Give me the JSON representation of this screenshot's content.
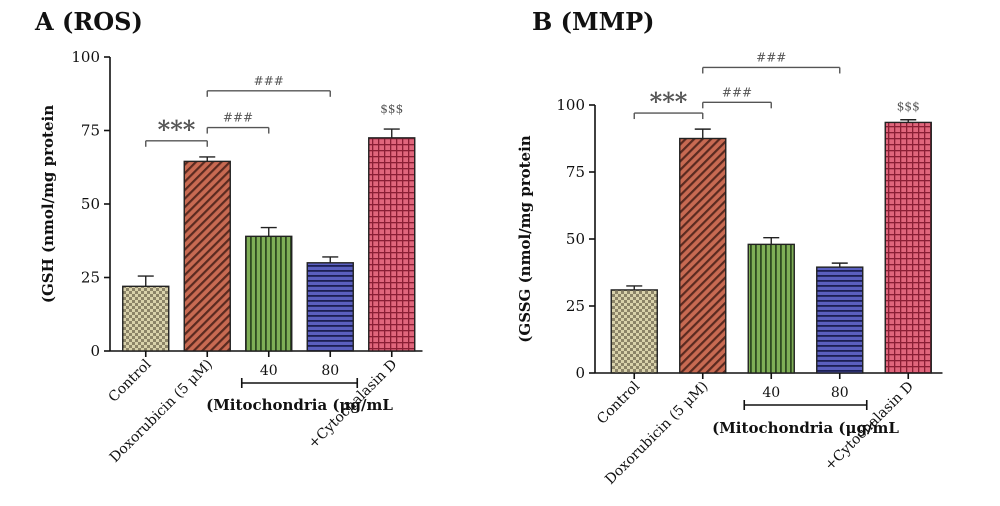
{
  "chart_data": [
    {
      "type": "bar",
      "title": "A (ROS)",
      "ylabel": "(GSH (nmol/mg protein",
      "ylim": [
        0,
        100
      ],
      "yticks": [
        0,
        25,
        50,
        75,
        100
      ],
      "categories": [
        "Control",
        "Doxorubicin (5 μM)",
        "40",
        "80",
        "+Cytochalasin D"
      ],
      "values": [
        22,
        64.5,
        39,
        30,
        72.5
      ],
      "errors": [
        3.5,
        1.5,
        3,
        2,
        3
      ],
      "group_label": "(Mitochondria (μg/mL",
      "group_members": [
        2,
        3
      ],
      "patterns": [
        "checker",
        "diag",
        "vert",
        "horiz",
        "grid"
      ],
      "colors": [
        "#cfc59a",
        "#c0604a",
        "#6f9a48",
        "#4a4fa6",
        "#d35a6e"
      ],
      "annotations": [
        {
          "text": "***",
          "from": 0,
          "to": 1,
          "level": 71.5,
          "kind": "bracket"
        },
        {
          "text": "###",
          "from": 1,
          "to": 2,
          "level": 76,
          "kind": "bracket"
        },
        {
          "text": "###",
          "from": 1,
          "to": 3,
          "level": 88.5,
          "kind": "bracket"
        },
        {
          "text": "$$$",
          "at": 4,
          "level": 81,
          "kind": "label"
        }
      ]
    },
    {
      "type": "bar",
      "title": "B (MMP)",
      "ylabel": "(GSSG (nmol/mg protein",
      "ylim": [
        0,
        100
      ],
      "yticks": [
        0,
        25,
        50,
        75,
        100
      ],
      "categories": [
        "Control",
        "Doxorubicin (5 μM)",
        "40",
        "80",
        "+Cytochalasin D"
      ],
      "values": [
        31,
        87.5,
        48,
        39.5,
        93.5
      ],
      "errors": [
        1.5,
        3.5,
        2.5,
        1.5,
        1
      ],
      "group_label": "(Mitochondria (μg/mL",
      "group_members": [
        2,
        3
      ],
      "patterns": [
        "checker",
        "diag",
        "vert",
        "horiz",
        "grid"
      ],
      "colors": [
        "#cfc59a",
        "#c0604a",
        "#6f9a48",
        "#4a4fa6",
        "#d35a6e"
      ],
      "annotations": [
        {
          "text": "***",
          "from": 0,
          "to": 1,
          "level": 97,
          "kind": "bracket"
        },
        {
          "text": "###",
          "from": 1,
          "to": 2,
          "level": 101,
          "kind": "bracket"
        },
        {
          "text": "###",
          "from": 1,
          "to": 3,
          "level": 114,
          "kind": "bracket"
        },
        {
          "text": "$$$",
          "at": 4,
          "level": 98,
          "kind": "label"
        }
      ]
    }
  ]
}
